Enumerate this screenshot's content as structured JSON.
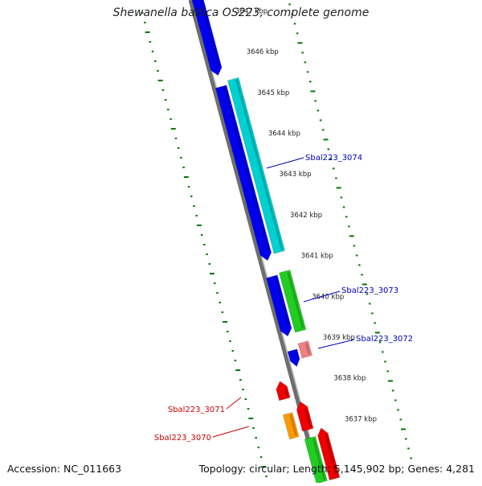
{
  "title": "Shewanella baltica OS223, complete genome",
  "footer": {
    "accession": "Accession: NC_011663",
    "summary": "Topology: circular; Length: 5,145,902 bp; Genes: 4,281"
  },
  "colors": {
    "backbone": "#888888",
    "gc_dots": "#007700",
    "cds_forward": "#00d0d0",
    "cds_reverse": "#0000ee",
    "rna": "#22cc22",
    "pseudo": "#f08080",
    "highlight_red": "#ee0000",
    "orange": "#ff9900",
    "label_blue": "#0000bb",
    "label_red": "#cc0000"
  },
  "scale_labels": [
    "3647 kbp",
    "3646 kbp",
    "3645 kbp",
    "3644 kbp",
    "3643 kbp",
    "3642 kbp",
    "3641 kbp",
    "3640 kbp",
    "3639 kbp",
    "3638 kbp",
    "3637 kbp"
  ],
  "gene_labels": [
    {
      "name": "Sbal223_3074",
      "color": "label_blue"
    },
    {
      "name": "Sbal223_3073",
      "color": "label_blue"
    },
    {
      "name": "Sbal223_3072",
      "color": "label_blue"
    },
    {
      "name": "Sbal223_3071",
      "color": "label_red"
    },
    {
      "name": "Sbal223_3070",
      "color": "label_red"
    }
  ]
}
